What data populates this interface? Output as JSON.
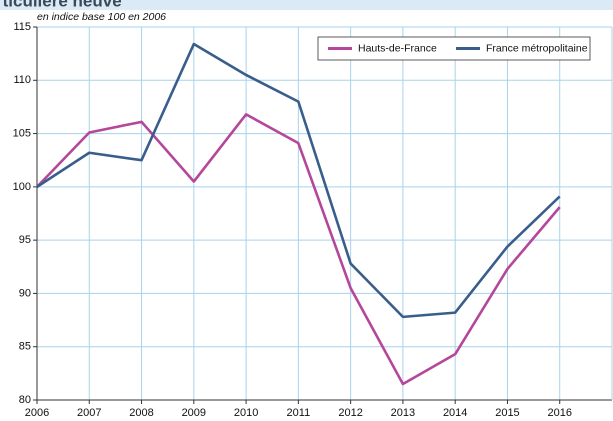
{
  "chart_data": {
    "type": "line",
    "title": "rticulière neuve",
    "subtitle": "en indice base 100 en 2006",
    "x": [
      2006,
      2007,
      2008,
      2009,
      2010,
      2011,
      2012,
      2013,
      2014,
      2015,
      2016
    ],
    "series": [
      {
        "name": "Hauts-de-France",
        "color": "#b5479a",
        "values": [
          100,
          105.1,
          106.1,
          100.5,
          106.8,
          104.1,
          90.5,
          81.5,
          84.3,
          92.3,
          98.1
        ]
      },
      {
        "name": "France métropolitaine",
        "color": "#3a5e8c",
        "values": [
          100,
          103.2,
          102.5,
          113.4,
          110.5,
          108.0,
          92.8,
          87.8,
          88.2,
          94.4,
          99.1
        ]
      }
    ],
    "xlim": [
      2006,
      2017
    ],
    "xticks": [
      2006,
      2007,
      2008,
      2009,
      2010,
      2011,
      2012,
      2013,
      2014,
      2015,
      2016
    ],
    "ylim": [
      80,
      115
    ],
    "yticks": [
      80,
      85,
      90,
      95,
      100,
      105,
      110,
      115
    ],
    "grid": true,
    "legend": "top-right"
  }
}
